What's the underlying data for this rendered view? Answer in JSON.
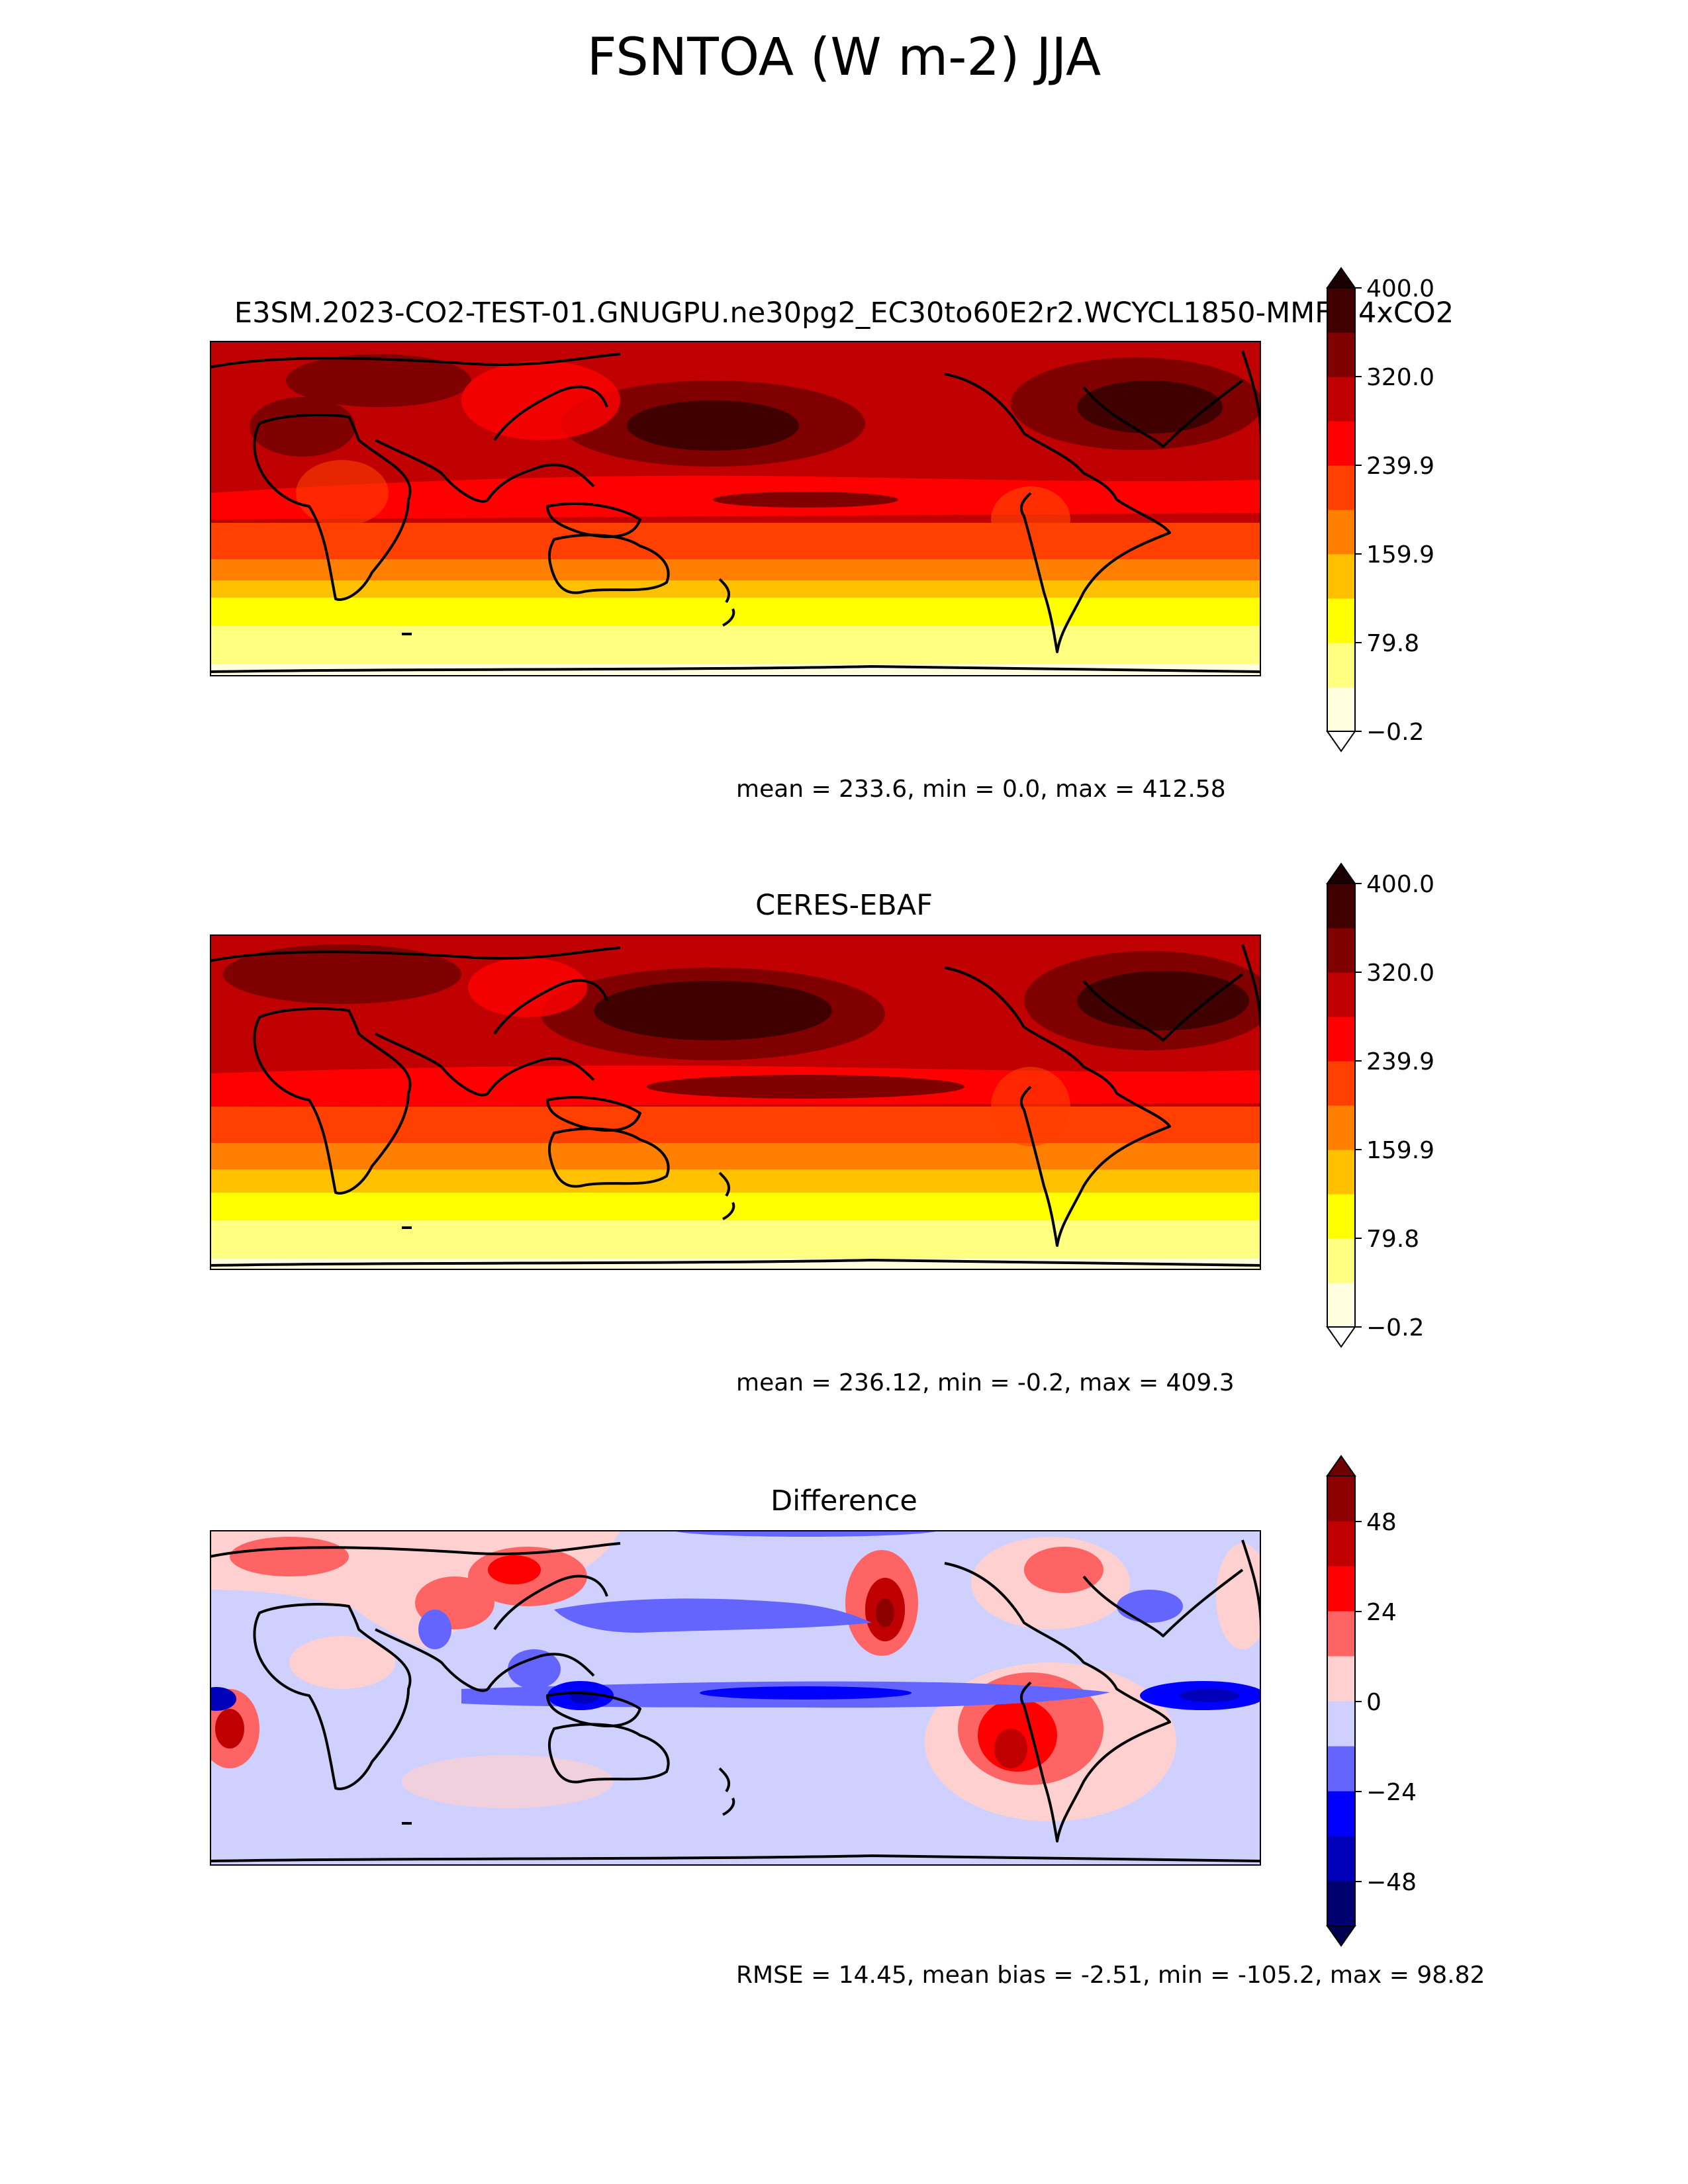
{
  "figure": {
    "title": "FSNTOA (W m-2) JJA"
  },
  "panels": [
    {
      "id": "test",
      "title": "E3SM.2023-CO2-TEST-01.GNUGPU.ne30pg2_EC30to60E2r2.WCYCL1850-MMF1.4xCO2",
      "stats": "mean = 233.6, min = 0.0, max = 412.58",
      "colorbar": {
        "ticks": [
          "400.0",
          "320.0",
          "239.9",
          "159.9",
          "79.8",
          "−0.2"
        ],
        "colors": [
          "#ffffe0",
          "#ffff80",
          "#ffff00",
          "#ffc000",
          "#ff8000",
          "#ff4000",
          "#ff0000",
          "#c00000",
          "#800000",
          "#400000"
        ],
        "extend_top": "#1a0000",
        "extend_bottom": "#ffffff"
      }
    },
    {
      "id": "obs",
      "title": "CERES-EBAF",
      "stats": "mean = 236.12, min = -0.2, max = 409.3",
      "colorbar": {
        "ticks": [
          "400.0",
          "320.0",
          "239.9",
          "159.9",
          "79.8",
          "−0.2"
        ],
        "colors": [
          "#ffffe0",
          "#ffff80",
          "#ffff00",
          "#ffc000",
          "#ff8000",
          "#ff4000",
          "#ff0000",
          "#c00000",
          "#800000",
          "#400000"
        ],
        "extend_top": "#1a0000",
        "extend_bottom": "#ffffff"
      }
    },
    {
      "id": "diff",
      "title": "Difference",
      "stats": "RMSE = 14.45, mean bias = -2.51, min = -105.2, max = 98.82",
      "colorbar": {
        "ticks": [
          "48",
          "24",
          "0",
          "−24",
          "−48"
        ],
        "colors": [
          "#00006e",
          "#0000b8",
          "#0000ff",
          "#6464ff",
          "#d0d0ff",
          "#ffd0d0",
          "#ff6464",
          "#ff0000",
          "#c00000",
          "#8c0000"
        ],
        "extend_top": "#6e0000",
        "extend_bottom": "#000050"
      }
    }
  ]
}
